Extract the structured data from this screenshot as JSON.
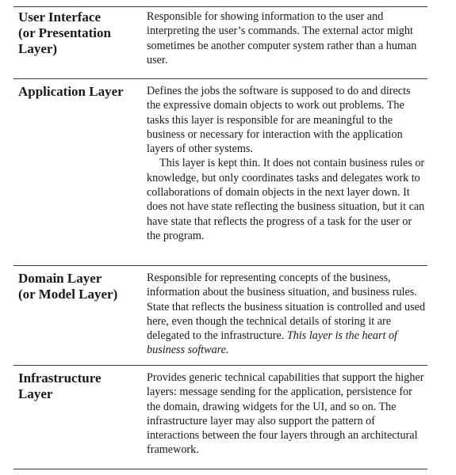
{
  "rows": [
    {
      "name": "User Interface\n(or Presentation\nLayer)",
      "description": "Responsible for showing information to the user and interpreting the user’s commands. The external actor might sometimes be another computer system rather than a human user."
    },
    {
      "name": "Application Layer",
      "description": "Defines the jobs the software is supposed to do and directs the expressive domain objects to work out problems. The tasks this layer is responsible for are meaningful to the business or necessary for interaction with the application layers of other systems.",
      "description_2": "This layer is kept thin. It does not contain business rules or knowledge, but only coordinates tasks and delegates work to collaborations of domain objects in the next layer down. It does not have state reflecting the business situation, but it can have state that reflects the progress of a task for the user or the program."
    },
    {
      "name": "Domain Layer\n(or Model Layer)",
      "description": "Responsible for representing concepts of the business, information about the business situation, and business rules. State that reflects the business situation is controlled and used here, even though the technical details of storing it are delegated to the infrastructure.",
      "emphasis": "This layer is the heart of business software."
    },
    {
      "name": "Infrastructure\nLayer",
      "description": "Provides generic technical capabilities that support the higher layers: message sending for the application, persistence for the domain, drawing widgets for the UI, and so on. The infrastructure layer may also support the pattern of interactions between the four layers through an architectural framework."
    }
  ]
}
